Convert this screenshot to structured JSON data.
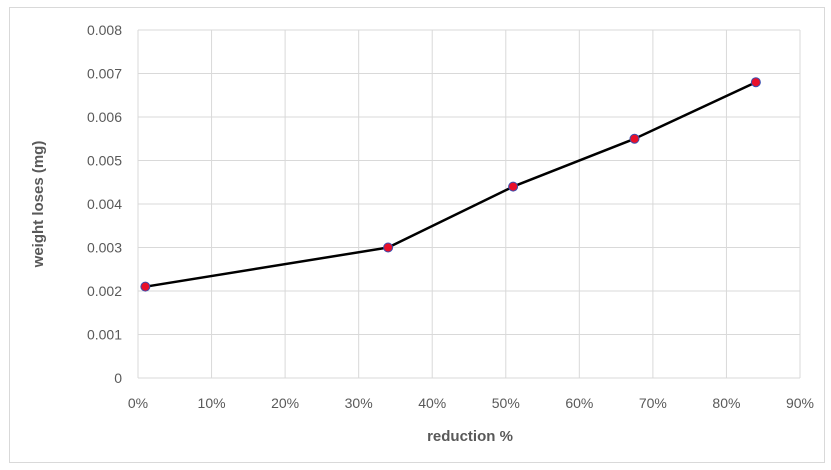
{
  "chart_data": {
    "type": "line",
    "title": "",
    "xlabel": "reduction %",
    "ylabel": "weight loses (mg)",
    "x": [
      0.01,
      0.34,
      0.51,
      0.675,
      0.84
    ],
    "series": [
      {
        "values": [
          0.0021,
          0.003,
          0.0044,
          0.0055,
          0.0068
        ]
      }
    ],
    "xlim": [
      0,
      0.9
    ],
    "ylim": [
      0,
      0.008
    ],
    "xticks": [
      "0%",
      "10%",
      "20%",
      "30%",
      "40%",
      "50%",
      "60%",
      "70%",
      "80%",
      "90%"
    ],
    "yticks": [
      "0",
      "0.001",
      "0.002",
      "0.003",
      "0.004",
      "0.005",
      "0.006",
      "0.007",
      "0.008"
    ],
    "grid": true,
    "legend": "none",
    "colors": {
      "line": "#000000",
      "marker": "#e8102a",
      "marker_edge": "#3a4fb0",
      "grid": "#d9d9d9"
    }
  }
}
